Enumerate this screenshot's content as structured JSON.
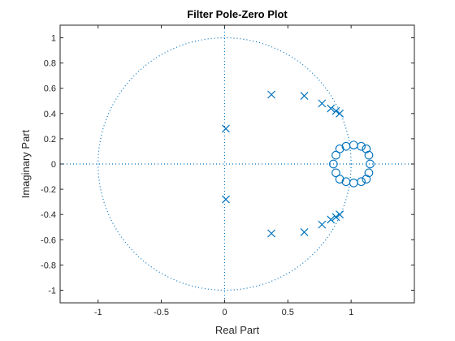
{
  "chart_data": {
    "type": "scatter",
    "title": "Filter Pole-Zero Plot",
    "xlabel": "Real Part",
    "ylabel": "Imaginary Part",
    "xlim": [
      -1.3,
      1.5
    ],
    "ylim": [
      -1.1,
      1.1
    ],
    "xticks": [
      -1,
      -0.5,
      0,
      0.5,
      1
    ],
    "xtick_labels": [
      "-1",
      "-0.5",
      "0",
      "0.5",
      "1"
    ],
    "yticks": [
      -1,
      -0.8,
      -0.6,
      -0.4,
      -0.2,
      0,
      0.2,
      0.4,
      0.6,
      0.8,
      1
    ],
    "ytick_labels": [
      "-1",
      "-0.8",
      "-0.6",
      "-0.4",
      "-0.2",
      "0",
      "0.2",
      "0.4",
      "0.6",
      "0.8",
      "1"
    ],
    "grid": false,
    "unit_circle": true,
    "reference_lines": {
      "x": 0,
      "y": 0,
      "style": "dotted"
    },
    "color": "#0072bd",
    "series": [
      {
        "marker": "x",
        "points": [
          [
            0.01,
            0.28
          ],
          [
            0.01,
            -0.28
          ],
          [
            0.37,
            0.55
          ],
          [
            0.37,
            -0.55
          ],
          [
            0.63,
            0.54
          ],
          [
            0.63,
            -0.54
          ],
          [
            0.77,
            0.48
          ],
          [
            0.77,
            -0.48
          ],
          [
            0.84,
            0.44
          ],
          [
            0.84,
            -0.44
          ],
          [
            0.88,
            0.42
          ],
          [
            0.88,
            -0.42
          ],
          [
            0.91,
            0.4
          ],
          [
            0.91,
            -0.4
          ]
        ]
      },
      {
        "marker": "o",
        "points": [
          [
            1.15,
            0.0
          ],
          [
            1.14,
            0.07
          ],
          [
            1.12,
            0.12
          ],
          [
            1.08,
            0.14
          ],
          [
            1.02,
            0.15
          ],
          [
            0.96,
            0.14
          ],
          [
            0.91,
            0.12
          ],
          [
            0.88,
            0.07
          ],
          [
            0.86,
            0.0
          ],
          [
            0.88,
            -0.07
          ],
          [
            0.91,
            -0.12
          ],
          [
            0.96,
            -0.14
          ],
          [
            1.02,
            -0.15
          ],
          [
            1.08,
            -0.14
          ],
          [
            1.12,
            -0.12
          ],
          [
            1.14,
            -0.07
          ]
        ]
      }
    ]
  }
}
